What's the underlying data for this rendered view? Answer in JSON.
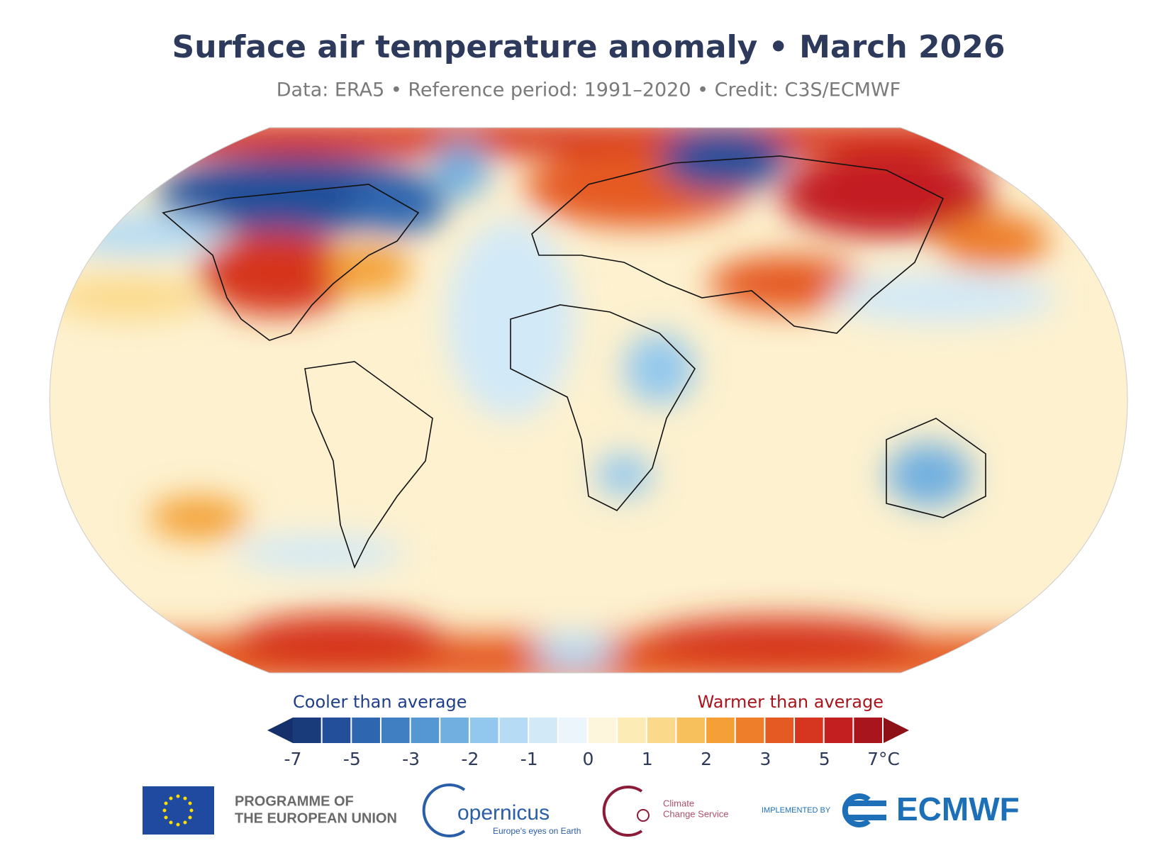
{
  "header": {
    "title": "Surface air temperature anomaly • March 2026",
    "subtitle": "Data: ERA5 • Reference period: 1991–2020 • Credit: C3S/ECMWF"
  },
  "legend": {
    "cooler": "Cooler than average",
    "warmer": "Warmer than average",
    "colors": [
      "#1a3b7a",
      "#234f9a",
      "#2f66b0",
      "#3f7fc2",
      "#5497d3",
      "#70afe0",
      "#93c8ee",
      "#b5dbf5",
      "#d2e9f8",
      "#ebf5fb",
      "#fdf6dd",
      "#fdebb6",
      "#fbd98a",
      "#f8c05c",
      "#f4a036",
      "#ee7e2a",
      "#e55a22",
      "#d6361f",
      "#c31f21",
      "#a9151c"
    ],
    "low_color": "#15306a",
    "high_color": "#8f1118",
    "tick_labels": [
      "-7",
      "-5",
      "-3",
      "-2",
      "-1",
      "0",
      "1",
      "2",
      "3",
      "5",
      "7°C"
    ]
  },
  "footer": {
    "eu_line1": "PROGRAMME OF",
    "eu_line2": "THE EUROPEAN UNION",
    "copernicus": "opernicus",
    "copernicus_tagline": "Europe's eyes on Earth",
    "c3s_line1": "Climate",
    "c3s_line2": "Change Service",
    "implemented_by": "IMPLEMENTED BY",
    "ecmwf": "ECMWF"
  }
}
